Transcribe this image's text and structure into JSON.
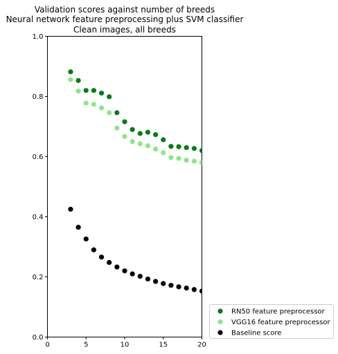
{
  "chart_data": {
    "type": "scatter",
    "title": [
      "Validation scores against number of breeds",
      "Neural network feature preprocessing plus SVM classifier",
      "Clean images, all breeds"
    ],
    "xlabel": "",
    "ylabel": "",
    "xlim": [
      0,
      20
    ],
    "ylim": [
      0.0,
      1.0
    ],
    "xticks": [
      0,
      5,
      10,
      15,
      20
    ],
    "xtick_labels": [
      "0",
      "5",
      "10",
      "15",
      "20"
    ],
    "yticks": [
      0.0,
      0.2,
      0.4,
      0.6,
      0.8,
      1.0
    ],
    "ytick_labels": [
      "0.0",
      "0.2",
      "0.4",
      "0.6",
      "0.8",
      "1.0"
    ],
    "grid": false,
    "legend_position": "outside-bottom-right",
    "x": [
      3,
      4,
      5,
      6,
      7,
      8,
      9,
      10,
      11,
      12,
      13,
      14,
      15,
      16,
      17,
      18,
      19,
      20
    ],
    "series": [
      {
        "name": "RN50 feature preprocessor",
        "color": "#0b7a18",
        "values": [
          0.882,
          0.853,
          0.82,
          0.82,
          0.811,
          0.799,
          0.746,
          0.716,
          0.69,
          0.677,
          0.681,
          0.673,
          0.656,
          0.634,
          0.633,
          0.63,
          0.627,
          0.62
        ]
      },
      {
        "name": "VGG16 feature preprocessor",
        "color": "#90e48e",
        "values": [
          0.856,
          0.818,
          0.778,
          0.774,
          0.762,
          0.746,
          0.695,
          0.667,
          0.65,
          0.643,
          0.636,
          0.625,
          0.613,
          0.597,
          0.594,
          0.588,
          0.585,
          0.58
        ]
      },
      {
        "name": "Baseline score",
        "color": "#000000",
        "values": [
          0.425,
          0.365,
          0.326,
          0.29,
          0.266,
          0.248,
          0.233,
          0.22,
          0.21,
          0.202,
          0.193,
          0.185,
          0.178,
          0.172,
          0.167,
          0.163,
          0.158,
          0.153
        ]
      }
    ]
  }
}
